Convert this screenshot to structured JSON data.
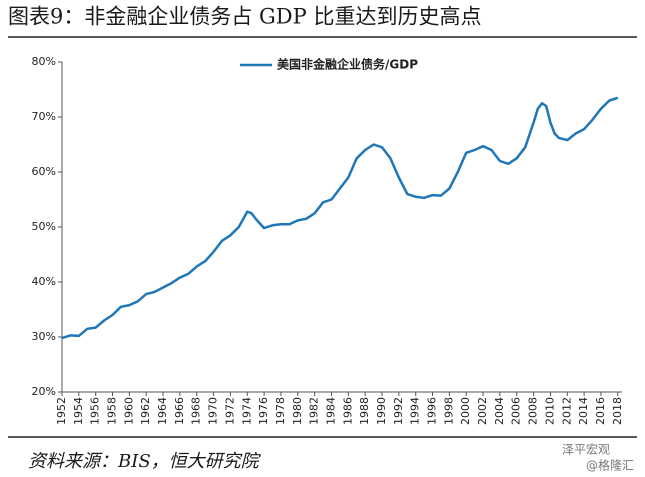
{
  "chart_data": {
    "type": "line",
    "title": "图表9：非金融企业债务占 GDP 比重达到历史高点",
    "source": "资料来源：BIS，恒大研究院",
    "watermark": [
      "泽平宏观",
      "@格隆汇"
    ],
    "legend": "top",
    "x": [
      1952,
      1953,
      1954,
      1955,
      1956,
      1957,
      1958,
      1959,
      1960,
      1961,
      1962,
      1963,
      1964,
      1965,
      1966,
      1967,
      1968,
      1969,
      1970,
      1971,
      1972,
      1973,
      1974,
      1974.5,
      1975,
      1976,
      1977,
      1978,
      1979,
      1980,
      1981,
      1982,
      1983,
      1984,
      1985,
      1986,
      1987,
      1988,
      1989,
      1990,
      1991,
      1992,
      1993,
      1994,
      1995,
      1996,
      1997,
      1998,
      1999,
      2000,
      2001,
      2002,
      2003,
      2004,
      2005,
      2006,
      2007,
      2008,
      2008.5,
      2009,
      2009.5,
      2010,
      2010.5,
      2011,
      2012,
      2013,
      2014,
      2015,
      2016,
      2017,
      2018
    ],
    "series": [
      {
        "name": "美国非金融企业债务/GDP",
        "color": "#1f77b8",
        "values": [
          29.8,
          30.3,
          30.2,
          31.5,
          31.7,
          33,
          34,
          35.5,
          35.8,
          36.5,
          37.8,
          38.2,
          39,
          39.8,
          40.8,
          41.5,
          42.8,
          43.8,
          45.5,
          47.5,
          48.5,
          50,
          52.8,
          52.5,
          51.5,
          49.8,
          50.3,
          50.5,
          50.5,
          51.2,
          51.5,
          52.5,
          54.5,
          55,
          57,
          59,
          62.5,
          64,
          65,
          64.5,
          62.5,
          59,
          56,
          55.5,
          55.3,
          55.8,
          55.7,
          57,
          60,
          63.5,
          64,
          64.7,
          64,
          62,
          61.5,
          62.5,
          64.5,
          69,
          71.5,
          72.5,
          72,
          69,
          67,
          66.2,
          65.8,
          67,
          67.8,
          69.5,
          71.5,
          73,
          73.5
        ]
      }
    ],
    "xlim": [
      1952,
      2018.5
    ],
    "xticks": [
      1952,
      1954,
      1956,
      1958,
      1960,
      1962,
      1964,
      1966,
      1968,
      1970,
      1972,
      1974,
      1976,
      1978,
      1980,
      1982,
      1984,
      1986,
      1988,
      1990,
      1992,
      1994,
      1996,
      1998,
      2000,
      2002,
      2004,
      2006,
      2008,
      2010,
      2012,
      2014,
      2016,
      2018
    ],
    "ylim": [
      20,
      80
    ],
    "yticks": [
      {
        "value": 20,
        "label": "20%"
      },
      {
        "value": 30,
        "label": "30%"
      },
      {
        "value": 40,
        "label": "40%"
      },
      {
        "value": 50,
        "label": "50%"
      },
      {
        "value": 60,
        "label": "60%"
      },
      {
        "value": 70,
        "label": "70%"
      },
      {
        "value": 80,
        "label": "80%"
      }
    ]
  }
}
